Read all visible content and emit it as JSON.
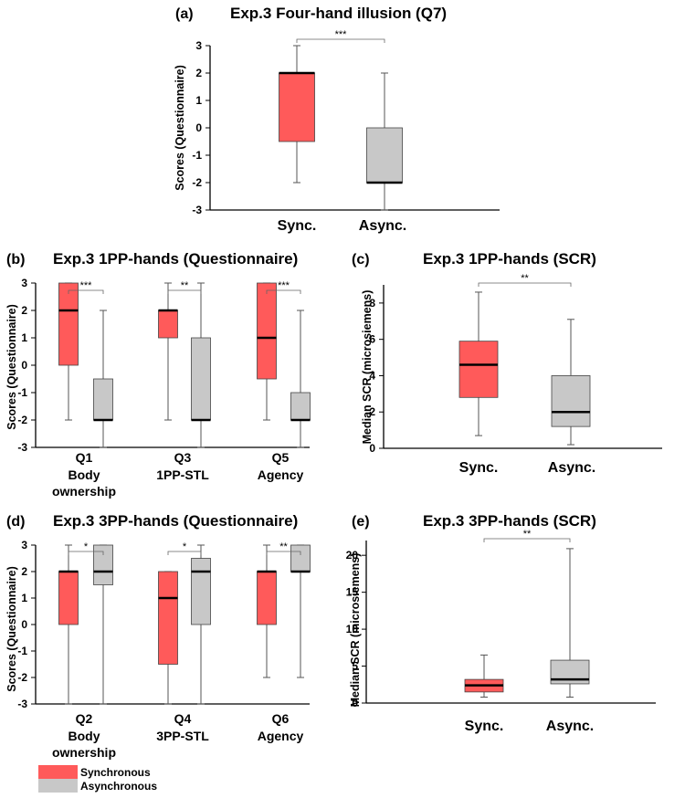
{
  "colors": {
    "synchronous": "#ff5a5a",
    "asynchronous": "#c8c8c8",
    "median": "#000000",
    "axis": "#000000",
    "whisker": "#555555"
  },
  "legend": {
    "synchronous": "Synchronous",
    "asynchronous": "Asynchronous"
  },
  "chart_data": [
    {
      "panel": "(a)",
      "type": "box",
      "title": "Exp.3 Four-hand illusion (Q7)",
      "ylabel": "Scores (Questionnaire)",
      "ylim": [
        -3,
        3
      ],
      "yticks": [
        -3,
        -2,
        -1,
        0,
        1,
        2,
        3
      ],
      "groups": [
        {
          "label": "Sync.",
          "condition": "synchronous",
          "min": -2,
          "q1": -0.5,
          "median": 2,
          "q3": 2,
          "max": 3
        },
        {
          "label": "Async.",
          "condition": "asynchronous",
          "min": -3,
          "q1": -2,
          "median": -2,
          "q3": 0,
          "max": 2
        }
      ],
      "significance": [
        {
          "between": [
            0,
            1
          ],
          "label": "***"
        }
      ]
    },
    {
      "panel": "(b)",
      "type": "box",
      "title": "Exp.3 1PP-hands (Questionnaire)",
      "ylabel": "Scores (Questionnaire)",
      "ylim": [
        -3,
        3
      ],
      "yticks": [
        -3,
        -2,
        -1,
        0,
        1,
        2,
        3
      ],
      "categories": [
        {
          "label": "Q1",
          "sublabel": [
            "Body",
            "ownership"
          ]
        },
        {
          "label": "Q3",
          "sublabel": [
            "1PP-STL"
          ]
        },
        {
          "label": "Q5",
          "sublabel": [
            "Agency"
          ]
        }
      ],
      "series": [
        {
          "name": "Synchronous",
          "condition": "synchronous",
          "boxes": [
            {
              "min": -2,
              "q1": 0,
              "median": 2,
              "q3": 3,
              "max": 3
            },
            {
              "min": -2,
              "q1": 1,
              "median": 2,
              "q3": 2,
              "max": 3
            },
            {
              "min": -2,
              "q1": -0.5,
              "median": 1,
              "q3": 3,
              "max": 3
            }
          ]
        },
        {
          "name": "Asynchronous",
          "condition": "asynchronous",
          "boxes": [
            {
              "min": -3,
              "q1": -2,
              "median": -2,
              "q3": -0.5,
              "max": 2
            },
            {
              "min": -3,
              "q1": -2,
              "median": -2,
              "q3": 1,
              "max": 3
            },
            {
              "min": -3,
              "q1": -2,
              "median": -2,
              "q3": -1,
              "max": 2
            }
          ]
        }
      ],
      "significance": [
        "***",
        "**",
        "***"
      ]
    },
    {
      "panel": "(c)",
      "type": "box",
      "title": "Exp.3 1PP-hands (SCR)",
      "ylabel": "Median SCR (microsiemens)",
      "ylim": [
        0,
        9
      ],
      "yticks": [
        0,
        2,
        4,
        6,
        8
      ],
      "groups": [
        {
          "label": "Sync.",
          "condition": "synchronous",
          "min": 0.7,
          "q1": 2.8,
          "median": 4.6,
          "q3": 5.9,
          "max": 8.6
        },
        {
          "label": "Async.",
          "condition": "asynchronous",
          "min": 0.2,
          "q1": 1.2,
          "median": 2.0,
          "q3": 4.0,
          "max": 7.1
        }
      ],
      "significance": [
        {
          "between": [
            0,
            1
          ],
          "label": "**"
        }
      ]
    },
    {
      "panel": "(d)",
      "type": "box",
      "title": "Exp.3 3PP-hands (Questionnaire)",
      "ylabel": "Scores (Questionnaire)",
      "ylim": [
        -3,
        3
      ],
      "yticks": [
        -3,
        -2,
        -1,
        0,
        1,
        2,
        3
      ],
      "categories": [
        {
          "label": "Q2",
          "sublabel": [
            "Body",
            "ownership"
          ]
        },
        {
          "label": "Q4",
          "sublabel": [
            "3PP-STL"
          ]
        },
        {
          "label": "Q6",
          "sublabel": [
            "Agency"
          ]
        }
      ],
      "series": [
        {
          "name": "Synchronous",
          "condition": "synchronous",
          "boxes": [
            {
              "min": -3,
              "q1": 0,
              "median": 2,
              "q3": 2,
              "max": 3
            },
            {
              "min": -3,
              "q1": -1.5,
              "median": 1,
              "q3": 2,
              "max": 2
            },
            {
              "min": -2,
              "q1": 0,
              "median": 2,
              "q3": 2,
              "max": 3
            }
          ]
        },
        {
          "name": "Asynchronous",
          "condition": "asynchronous",
          "boxes": [
            {
              "min": -3,
              "q1": 1.5,
              "median": 2,
              "q3": 3,
              "max": 3
            },
            {
              "min": -3,
              "q1": 0,
              "median": 2,
              "q3": 2.5,
              "max": 3
            },
            {
              "min": -2,
              "q1": 2,
              "median": 2,
              "q3": 3,
              "max": 3
            }
          ]
        }
      ],
      "significance": [
        "*",
        "*",
        "**"
      ]
    },
    {
      "panel": "(e)",
      "type": "box",
      "title": "Exp.3 3PP-hands (SCR)",
      "ylabel": "Median SCR (microsiemens)",
      "ylim": [
        0,
        22
      ],
      "yticks": [
        0,
        5,
        10,
        15,
        20
      ],
      "groups": [
        {
          "label": "Sync.",
          "condition": "synchronous",
          "min": 0.8,
          "q1": 1.5,
          "median": 2.4,
          "q3": 3.2,
          "max": 6.5
        },
        {
          "label": "Async.",
          "condition": "asynchronous",
          "min": 0.8,
          "q1": 2.6,
          "median": 3.2,
          "q3": 5.8,
          "max": 20.9
        }
      ],
      "significance": [
        {
          "between": [
            0,
            1
          ],
          "label": "**"
        }
      ]
    }
  ]
}
